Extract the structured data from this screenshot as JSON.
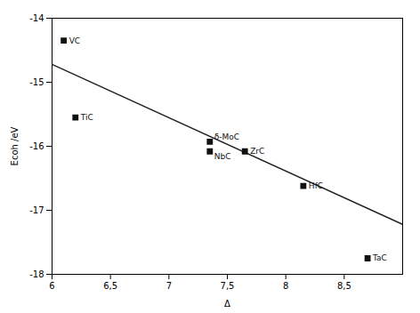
{
  "chart_data": {
    "type": "scatter",
    "x": [
      6.1,
      6.2,
      7.35,
      7.35,
      7.65,
      8.15,
      8.7
    ],
    "values": [
      -14.35,
      -15.55,
      -15.93,
      -16.08,
      -16.08,
      -16.62,
      -17.75
    ],
    "labels": [
      "VC",
      "TiC",
      "δ-MoC",
      "NbC",
      "ZrC",
      "HfC",
      "TaC"
    ],
    "color": "#111111",
    "marker": "square",
    "trend_line": {
      "x": [
        6.0,
        9.0
      ],
      "values": [
        -14.72,
        -17.22
      ],
      "color": "#222222"
    },
    "xlabel": "Δ",
    "ylabel": "Ecoh /eV",
    "xlim": [
      6.0,
      9.0
    ],
    "ylim": [
      -18.0,
      -14.0
    ],
    "xticks": [
      6,
      {
        "value": 6.5,
        "label": "6,5"
      },
      7,
      {
        "value": 7.5,
        "label": "7,5"
      },
      8,
      {
        "value": 8.5,
        "label": "8,5"
      }
    ],
    "yticks": [
      -18,
      -17,
      -16,
      -15,
      -14
    ],
    "grid": false
  }
}
